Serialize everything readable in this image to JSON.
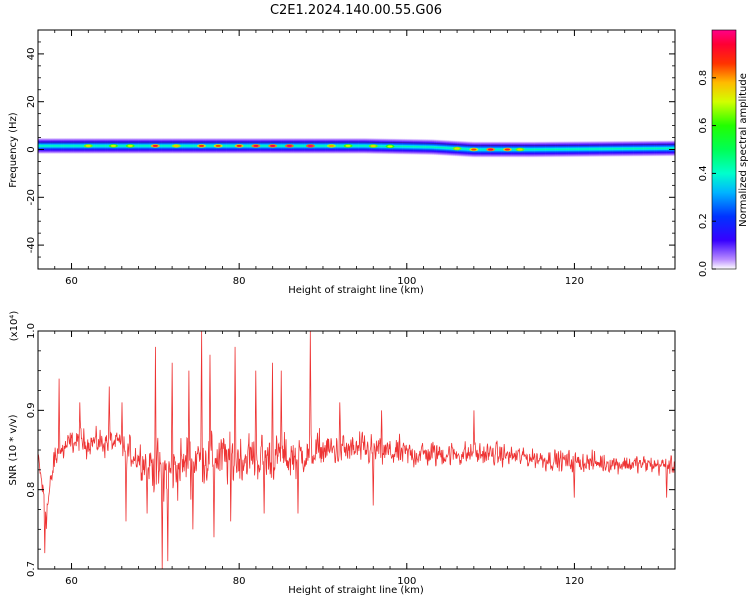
{
  "figure": {
    "title": "C2E1.2024.140.00.55.G06"
  },
  "chart_data": [
    {
      "type": "heatmap",
      "xlabel": "Height of straight line (km)",
      "ylabel": "Frequency (Hz)",
      "xlim": [
        56,
        132
      ],
      "ylim": [
        -50,
        50
      ],
      "xticks": [
        60,
        80,
        100,
        120
      ],
      "xtick_labels": [
        "60",
        "80",
        "100",
        "120"
      ],
      "yticks": [
        40,
        20,
        0,
        -20,
        -40
      ],
      "ytick_labels": [
        "40",
        "20",
        "0",
        "-20",
        "-40"
      ],
      "band": {
        "center_hz": [
          {
            "x": 56,
            "f": 1.5
          },
          {
            "x": 80,
            "f": 1.5
          },
          {
            "x": 95,
            "f": 1.5
          },
          {
            "x": 103,
            "f": 1.0
          },
          {
            "x": 108,
            "f": 0.0
          },
          {
            "x": 115,
            "f": 0.0
          },
          {
            "x": 132,
            "f": 0.5
          }
        ],
        "halfwidth_hz": 3.5
      },
      "hotspots": [
        {
          "x": 62,
          "amp": 0.75
        },
        {
          "x": 65,
          "amp": 0.72
        },
        {
          "x": 67,
          "amp": 0.72
        },
        {
          "x": 70,
          "amp": 0.92
        },
        {
          "x": 72.5,
          "amp": 0.78
        },
        {
          "x": 75.5,
          "amp": 0.88
        },
        {
          "x": 77.5,
          "amp": 0.85
        },
        {
          "x": 80,
          "amp": 0.9
        },
        {
          "x": 82,
          "amp": 0.95
        },
        {
          "x": 84,
          "amp": 0.95
        },
        {
          "x": 86,
          "amp": 0.97
        },
        {
          "x": 88.5,
          "amp": 0.98
        },
        {
          "x": 91,
          "amp": 0.8
        },
        {
          "x": 93,
          "amp": 0.72
        },
        {
          "x": 96,
          "amp": 0.75
        },
        {
          "x": 98,
          "amp": 0.7
        },
        {
          "x": 106,
          "amp": 0.75
        },
        {
          "x": 108,
          "amp": 0.85
        },
        {
          "x": 110,
          "amp": 0.95
        },
        {
          "x": 112,
          "amp": 0.9
        },
        {
          "x": 113.5,
          "amp": 0.75
        }
      ],
      "colorbar": {
        "label": "Normalized spectral amplitude",
        "ticks": [
          0.0,
          0.2,
          0.4,
          0.6,
          0.8
        ],
        "tick_labels": [
          "0.0",
          "0.2",
          "0.4",
          "0.6",
          "0.8"
        ],
        "range": [
          0,
          1
        ]
      }
    },
    {
      "type": "line",
      "xlabel": "Height of straight line (km)",
      "ylabel": "SNR (10 * v/v)",
      "scale_label": "(x10⁴)",
      "xlim": [
        56,
        132
      ],
      "ylim": [
        0.7,
        1.0
      ],
      "xticks": [
        60,
        80,
        100,
        120
      ],
      "xtick_labels": [
        "60",
        "80",
        "100",
        "120"
      ],
      "yticks": [
        1.0,
        0.9,
        0.8,
        0.7
      ],
      "ytick_labels": [
        "1.0",
        "0.9",
        "0.8",
        "0.7"
      ],
      "series": [
        {
          "color": "#ee3333",
          "envelope": [
            {
              "x": 56,
              "mean": 0.84,
              "amp": 0.02
            },
            {
              "x": 57,
              "mean": 0.77,
              "amp": 0.04
            },
            {
              "x": 58,
              "mean": 0.84,
              "amp": 0.035
            },
            {
              "x": 60,
              "mean": 0.86,
              "amp": 0.03
            },
            {
              "x": 65,
              "mean": 0.86,
              "amp": 0.035
            },
            {
              "x": 68,
              "mean": 0.84,
              "amp": 0.04
            },
            {
              "x": 71,
              "mean": 0.82,
              "amp": 0.07
            },
            {
              "x": 75,
              "mean": 0.84,
              "amp": 0.07
            },
            {
              "x": 78,
              "mean": 0.84,
              "amp": 0.065
            },
            {
              "x": 82,
              "mean": 0.84,
              "amp": 0.06
            },
            {
              "x": 86,
              "mean": 0.84,
              "amp": 0.055
            },
            {
              "x": 90,
              "mean": 0.85,
              "amp": 0.045
            },
            {
              "x": 95,
              "mean": 0.85,
              "amp": 0.04
            },
            {
              "x": 100,
              "mean": 0.845,
              "amp": 0.035
            },
            {
              "x": 110,
              "mean": 0.845,
              "amp": 0.028
            },
            {
              "x": 120,
              "mean": 0.835,
              "amp": 0.025
            },
            {
              "x": 132,
              "mean": 0.83,
              "amp": 0.022
            }
          ],
          "peaks": [
            {
              "x": 58.5,
              "y": 0.94
            },
            {
              "x": 61,
              "y": 0.91
            },
            {
              "x": 64.5,
              "y": 0.93
            },
            {
              "x": 66,
              "y": 0.91
            },
            {
              "x": 70,
              "y": 0.98
            },
            {
              "x": 72,
              "y": 0.96
            },
            {
              "x": 74,
              "y": 0.95
            },
            {
              "x": 75.5,
              "y": 1.0
            },
            {
              "x": 76.5,
              "y": 0.97
            },
            {
              "x": 79.5,
              "y": 0.98
            },
            {
              "x": 82,
              "y": 0.95
            },
            {
              "x": 84,
              "y": 0.96
            },
            {
              "x": 85,
              "y": 0.95
            },
            {
              "x": 88.5,
              "y": 1.0
            },
            {
              "x": 92,
              "y": 0.91
            },
            {
              "x": 97,
              "y": 0.9
            },
            {
              "x": 108,
              "y": 0.9
            }
          ],
          "troughs": [
            {
              "x": 56.8,
              "y": 0.72
            },
            {
              "x": 66.5,
              "y": 0.76
            },
            {
              "x": 69,
              "y": 0.77
            },
            {
              "x": 70.8,
              "y": 0.7
            },
            {
              "x": 71.5,
              "y": 0.71
            },
            {
              "x": 74.5,
              "y": 0.75
            },
            {
              "x": 77,
              "y": 0.74
            },
            {
              "x": 79,
              "y": 0.76
            },
            {
              "x": 83,
              "y": 0.77
            },
            {
              "x": 87,
              "y": 0.77
            },
            {
              "x": 96,
              "y": 0.78
            },
            {
              "x": 120,
              "y": 0.79
            },
            {
              "x": 131,
              "y": 0.79
            }
          ]
        }
      ]
    }
  ]
}
